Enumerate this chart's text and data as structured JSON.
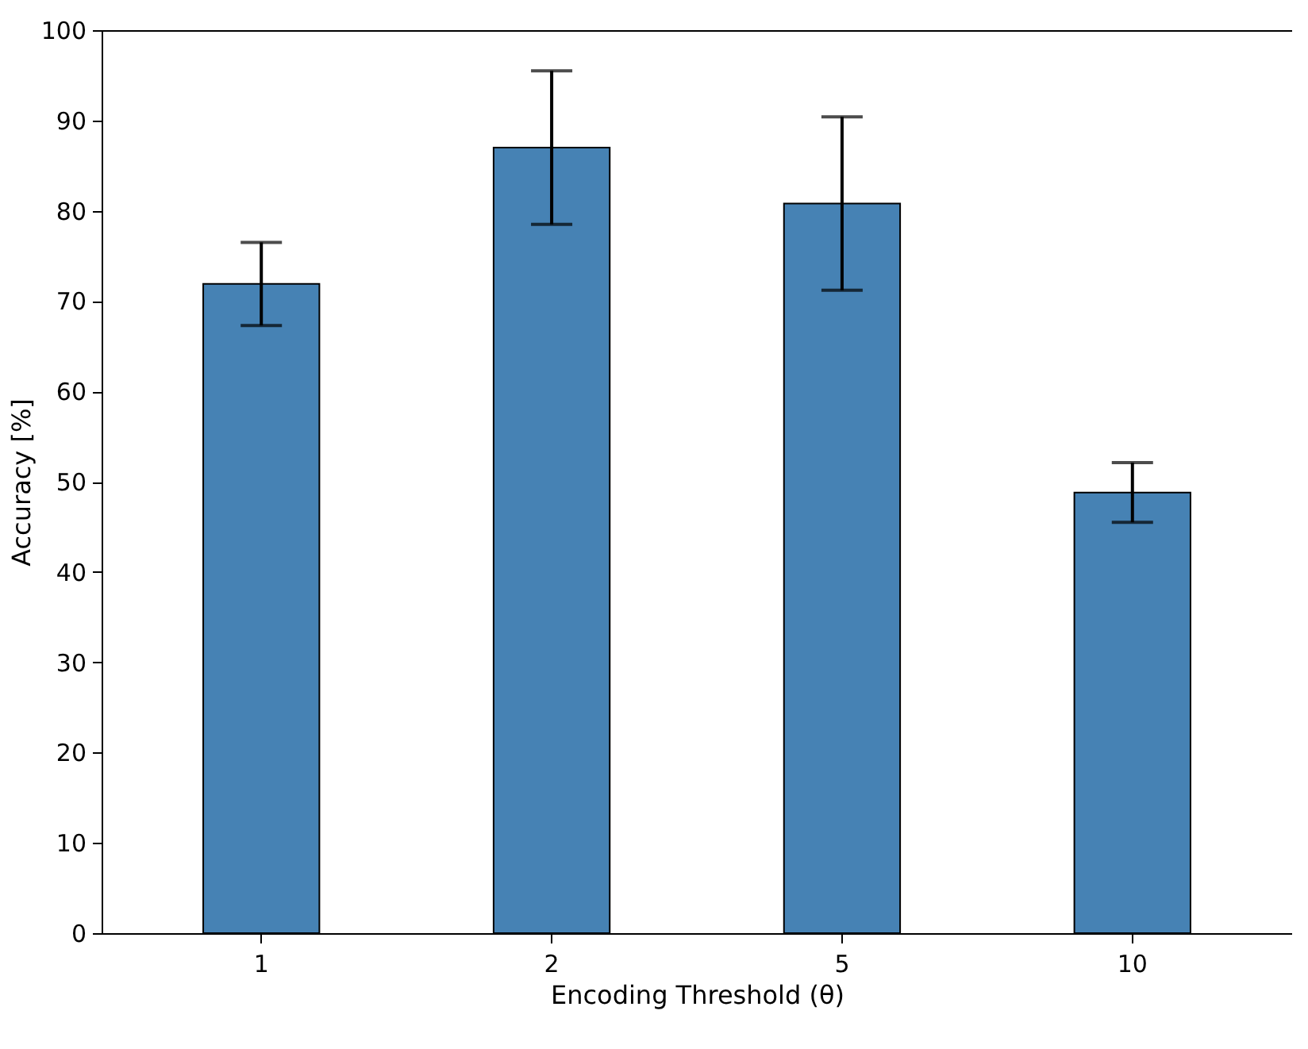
{
  "chart_data": {
    "type": "bar",
    "xlabel": "Encoding Threshold (θ)",
    "ylabel": "Accuracy [%]",
    "categories": [
      "1",
      "2",
      "5",
      "10"
    ],
    "values": [
      71.9,
      87.0,
      80.8,
      48.8
    ],
    "errors": [
      4.6,
      8.5,
      9.6,
      3.3
    ],
    "color": "#4682b4",
    "ylim": [
      0,
      100
    ],
    "yticks": [
      0,
      10,
      20,
      30,
      40,
      50,
      60,
      70,
      80,
      90,
      100
    ],
    "grid": false
  }
}
